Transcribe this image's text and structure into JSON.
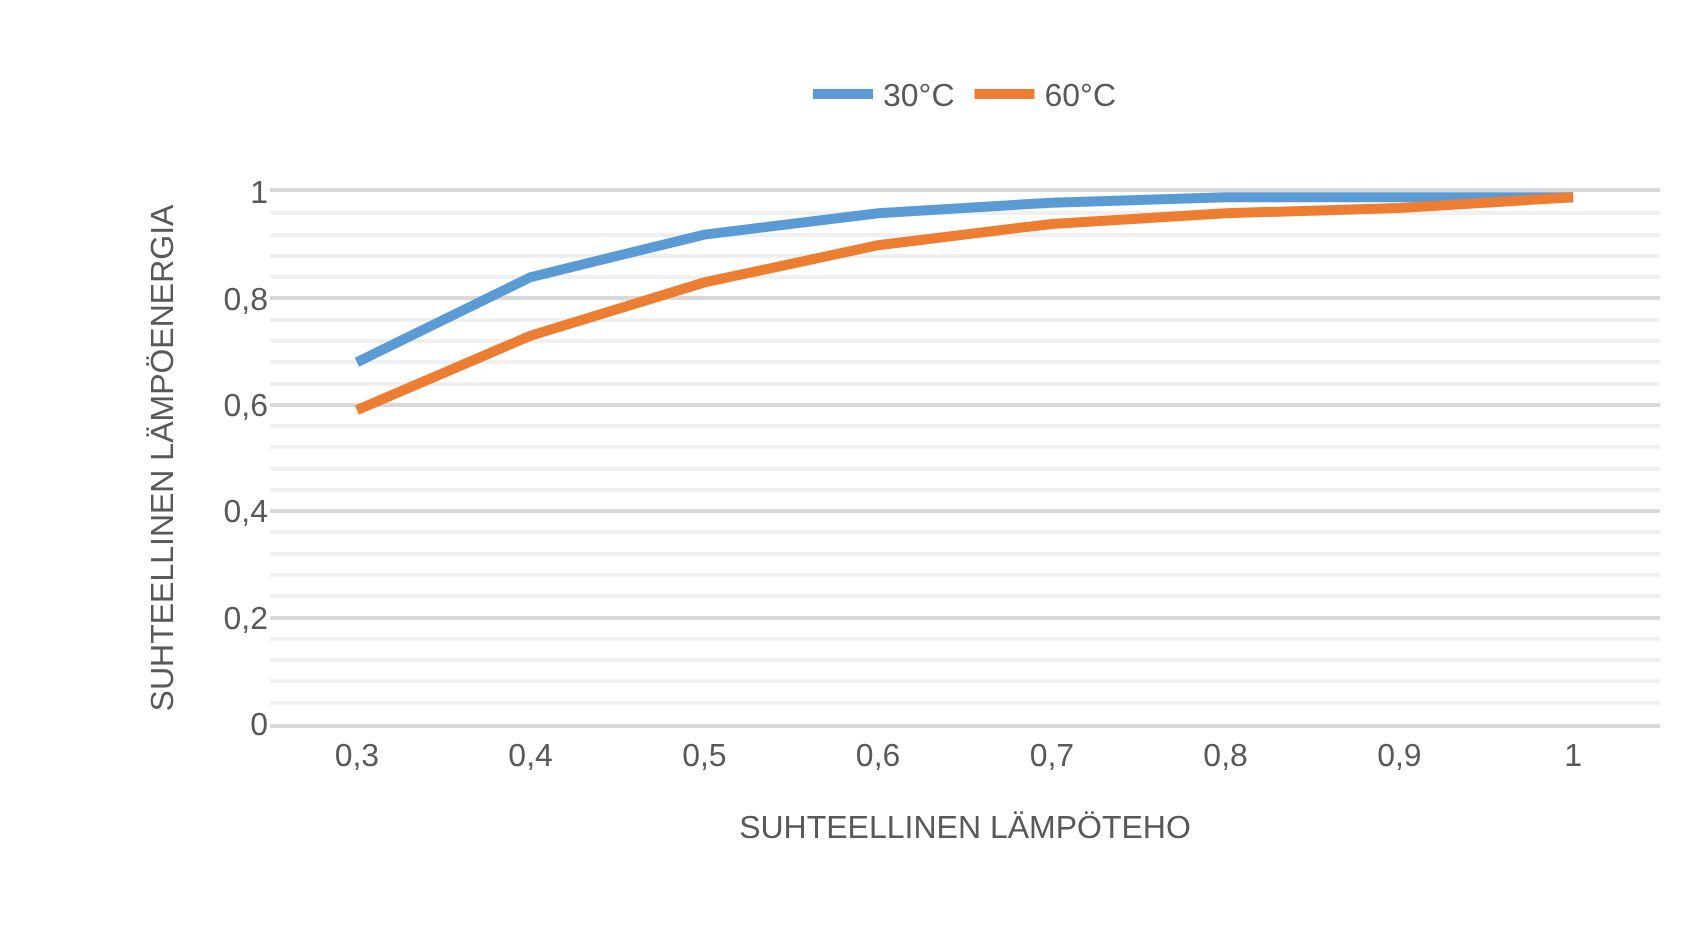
{
  "chart_data": {
    "type": "line",
    "xlabel": "SUHTEELLINEN LÄMPÖTEHO",
    "ylabel": "SUHTEELLINEN LÄMPÖENERGIA",
    "categories": [
      "0,3",
      "0,4",
      "0,5",
      "0,6",
      "0,7",
      "0,8",
      "0,9",
      "1"
    ],
    "series": [
      {
        "name": "30°C",
        "color": "#5b9bd5",
        "values": [
          0.68,
          0.84,
          0.92,
          0.96,
          0.98,
          0.99,
          0.99,
          0.99
        ]
      },
      {
        "name": "60°C",
        "color": "#ed7d31",
        "values": [
          0.59,
          0.73,
          0.83,
          0.9,
          0.94,
          0.96,
          0.97,
          0.99
        ]
      }
    ],
    "ylim": [
      0,
      1
    ],
    "yticks": [
      {
        "value": 0,
        "label": "0"
      },
      {
        "value": 0.2,
        "label": "0,2"
      },
      {
        "value": 0.4,
        "label": "0,4"
      },
      {
        "value": 0.6,
        "label": "0,6"
      },
      {
        "value": 0.8,
        "label": "0,8"
      },
      {
        "value": 1,
        "label": "1"
      }
    ],
    "grid": "y",
    "legend": "top",
    "marker": "none",
    "line_style": "solid"
  }
}
